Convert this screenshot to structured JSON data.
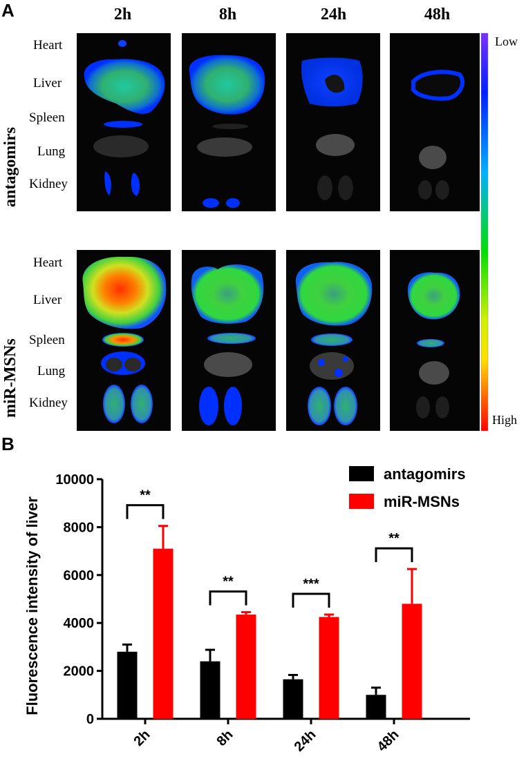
{
  "panelA": {
    "letter": "A",
    "time_points": [
      "2h",
      "8h",
      "24h",
      "48h"
    ],
    "groups": [
      "antagomirs",
      "miR-MSNs"
    ],
    "organs": [
      "Heart",
      "Liver",
      "Spleen",
      "Lung",
      "Kidney"
    ],
    "scale_low": "Low",
    "scale_high": "High"
  },
  "panelB": {
    "letter": "B"
  },
  "chart_data": {
    "type": "bar",
    "categories": [
      "2h",
      "8h",
      "24h",
      "48h"
    ],
    "series": [
      {
        "name": "antagomirs",
        "color": "#000000",
        "values": [
          2800,
          2400,
          1650,
          1000
        ],
        "errors": [
          300,
          480,
          180,
          300
        ]
      },
      {
        "name": "miR-MSNs",
        "color": "#ff0000",
        "values": [
          7100,
          4350,
          4250,
          4800
        ],
        "errors": [
          950,
          100,
          100,
          1450
        ]
      }
    ],
    "significance": [
      "**",
      "**",
      "***",
      "**"
    ],
    "ylabel": "Fluorescence intensity of liver",
    "xlabel": "",
    "ylim": [
      0,
      10000
    ],
    "yticks": [
      0,
      2000,
      4000,
      6000,
      8000,
      10000
    ],
    "legend_position": "top-right"
  }
}
